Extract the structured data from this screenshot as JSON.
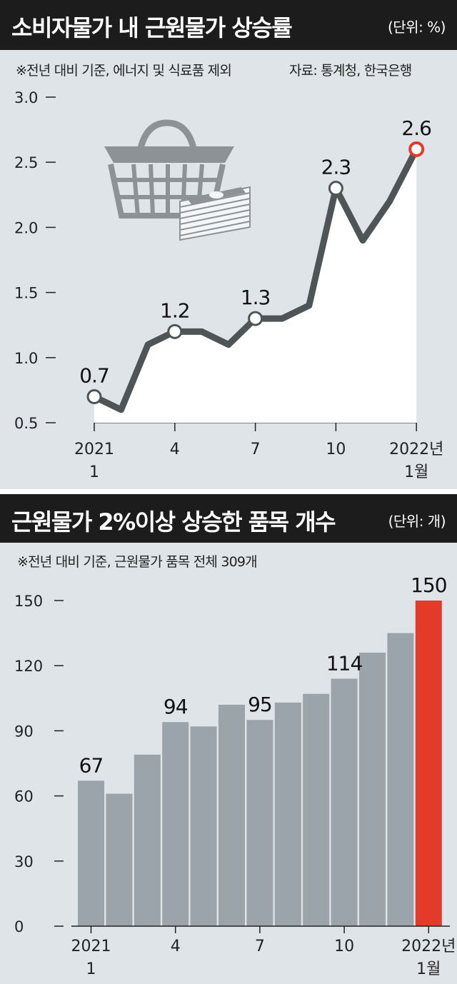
{
  "colors": {
    "panel_bg": "#dfe4e8",
    "title_bg": "#1c1c1c",
    "line": "#4d5557",
    "area": "#ffffff",
    "bar": "#9aa4aa",
    "bar_highlight": "#e43a2a",
    "marker_highlight": "#e43a2a"
  },
  "top": {
    "title": "소비자물가 내 근원물가 상승률",
    "unit": "(단위: %)",
    "note": "※전년 대비 기준, 에너지 및 식료품 제외",
    "source": "자료: 통계청, 한국은행",
    "icon": "shopping-basket-and-money-icon"
  },
  "bottom": {
    "title": "근원물가 2%이상 상승한 품목 개수",
    "unit": "(단위: 개)",
    "note": "※전년 대비 기준, 근원물가 품목 전체 309개"
  },
  "chart_data": [
    {
      "type": "line",
      "title": "소비자물가 내 근원물가 상승률",
      "x": [
        "2021-01",
        "2021-02",
        "2021-03",
        "2021-04",
        "2021-05",
        "2021-06",
        "2021-07",
        "2021-08",
        "2021-09",
        "2021-10",
        "2021-11",
        "2021-12",
        "2022-01"
      ],
      "values": [
        0.7,
        0.6,
        1.1,
        1.2,
        1.2,
        1.1,
        1.3,
        1.3,
        1.4,
        2.3,
        1.9,
        2.2,
        2.6
      ],
      "ylim": [
        0.5,
        3.0
      ],
      "yticks": [
        "3.0",
        "2.5",
        "2.0",
        "1.5",
        "1.0",
        "0.5"
      ],
      "ytick_values": [
        3.0,
        2.5,
        2.0,
        1.5,
        1.0,
        0.5
      ],
      "xticks": [
        {
          "index": 0,
          "line1": "2021",
          "line2": "1"
        },
        {
          "index": 3,
          "line1": "4",
          "line2": ""
        },
        {
          "index": 6,
          "line1": "7",
          "line2": ""
        },
        {
          "index": 9,
          "line1": "10",
          "line2": ""
        },
        {
          "index": 12,
          "line1": "2022년",
          "line2": "1월"
        }
      ],
      "labels": [
        {
          "index": 0,
          "text": "0.7"
        },
        {
          "index": 3,
          "text": "1.2"
        },
        {
          "index": 6,
          "text": "1.3"
        },
        {
          "index": 9,
          "text": "2.3"
        },
        {
          "index": 12,
          "text": "2.6"
        }
      ],
      "highlight_index": 12
    },
    {
      "type": "bar",
      "title": "근원물가 2%이상 상승한 품목 개수",
      "x": [
        "2021-01",
        "2021-02",
        "2021-03",
        "2021-04",
        "2021-05",
        "2021-06",
        "2021-07",
        "2021-08",
        "2021-09",
        "2021-10",
        "2021-11",
        "2021-12",
        "2022-01"
      ],
      "values": [
        67,
        61,
        79,
        94,
        92,
        102,
        95,
        103,
        107,
        114,
        126,
        135,
        150
      ],
      "ylim": [
        0,
        150
      ],
      "yticks": [
        "150",
        "120",
        "90",
        "60",
        "30",
        "0"
      ],
      "ytick_values": [
        150,
        120,
        90,
        60,
        30,
        0
      ],
      "xticks": [
        {
          "index": 0,
          "line1": "2021",
          "line2": "1"
        },
        {
          "index": 3,
          "line1": "4",
          "line2": ""
        },
        {
          "index": 6,
          "line1": "7",
          "line2": ""
        },
        {
          "index": 9,
          "line1": "10",
          "line2": ""
        },
        {
          "index": 12,
          "line1": "2022년",
          "line2": "1월"
        }
      ],
      "labels": [
        {
          "index": 0,
          "text": "67"
        },
        {
          "index": 3,
          "text": "94"
        },
        {
          "index": 6,
          "text": "95"
        },
        {
          "index": 9,
          "text": "114"
        },
        {
          "index": 12,
          "text": "150"
        }
      ],
      "highlight_index": 12
    }
  ]
}
